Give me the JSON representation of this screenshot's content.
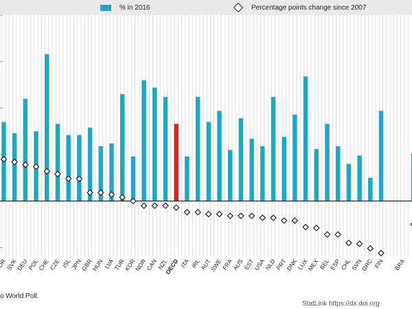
{
  "legend": {
    "bar_label": "% in 2016",
    "marker_label": "Percentage points change since 2007"
  },
  "footer": {
    "source": "o World Poll.",
    "link": "StatLink  https://dx.doi.org"
  },
  "colors": {
    "bar": "#1ea7c6",
    "highlight": "#e0201f",
    "marker": "#222222",
    "legend_bg": "#e9e9e9"
  },
  "chart_data": {
    "type": "bar",
    "title": "",
    "xlabel": "",
    "ylabel": "",
    "ylim": [
      -6,
      20
    ],
    "highlight_category": "OECD",
    "categories": [
      "KOR",
      "SVK",
      "DEU",
      "POL",
      "CHE",
      "CZE",
      "ISL",
      "JPN",
      "GBR",
      "HUN",
      "LVA",
      "TUR",
      "KOR",
      "NOR",
      "CAN",
      "NZL",
      "OECD",
      "ITA",
      "IRL",
      "AUT",
      "SWE",
      "FRA",
      "AUS",
      "EST",
      "USA",
      "NLD",
      "PRT",
      "DNK",
      "LUX",
      "MEX",
      "BEL",
      "ESP",
      "CHL",
      "SVN",
      "GRC",
      "FIN",
      "",
      "BRA",
      ""
    ],
    "series": [
      {
        "name": "% in 2016",
        "values": [
          8.5,
          7.3,
          11.0,
          7.5,
          15.8,
          8.3,
          7.1,
          7.1,
          7.9,
          5.9,
          6.2,
          11.5,
          4.8,
          13.0,
          12.2,
          11.2,
          8.3,
          4.8,
          11.2,
          8.5,
          9.7,
          5.5,
          8.9,
          6.7,
          5.9,
          11.2,
          6.9,
          9.3,
          13.4,
          5.6,
          8.3,
          5.9,
          4.0,
          4.9,
          2.5,
          9.7,
          null,
          null,
          5.1
        ]
      },
      {
        "name": "Percentage points change since 2007",
        "values": [
          4.5,
          4.2,
          3.9,
          3.7,
          3.2,
          2.9,
          2.4,
          2.4,
          0.9,
          0.9,
          0.7,
          0.4,
          0.0,
          -0.5,
          -0.5,
          -0.5,
          -0.7,
          -1.2,
          -1.2,
          -1.4,
          -1.4,
          -1.6,
          -1.6,
          -1.6,
          -1.8,
          -1.8,
          -2.1,
          -2.1,
          -2.8,
          -2.9,
          -3.6,
          -3.6,
          -4.5,
          -4.6,
          -5.1,
          -5.6,
          null,
          null,
          -2.5
        ]
      }
    ]
  }
}
